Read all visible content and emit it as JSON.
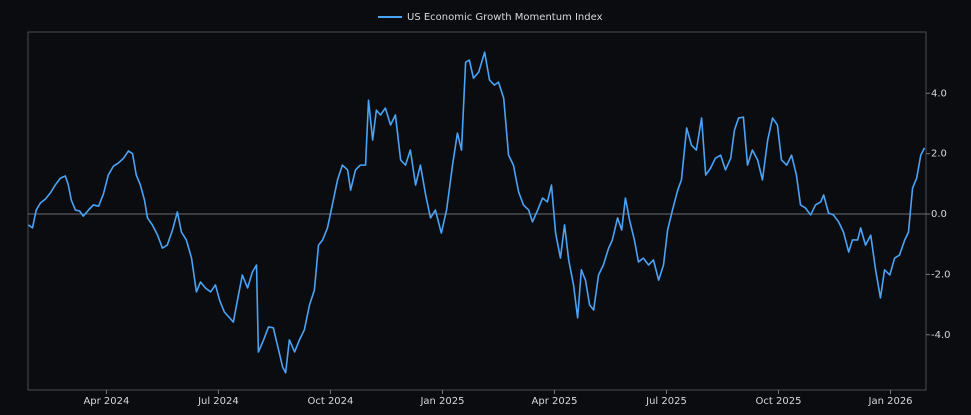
{
  "chart_data": {
    "type": "line",
    "x": [
      0.91,
      1.02,
      1.12,
      1.23,
      1.37,
      1.5,
      1.63,
      1.77,
      1.9,
      1.98,
      2.06,
      2.17,
      2.28,
      2.38,
      2.52,
      2.65,
      2.79,
      2.92,
      3.05,
      3.19,
      3.32,
      3.46,
      3.59,
      3.7,
      3.8,
      3.91,
      4.02,
      4.1,
      4.23,
      4.37,
      4.5,
      4.63,
      4.77,
      4.9,
      5.01,
      5.14,
      5.28,
      5.41,
      5.52,
      5.65,
      5.79,
      5.92,
      6.03,
      6.16,
      6.3,
      6.4,
      6.51,
      6.64,
      6.78,
      6.91,
      7.02,
      7.07,
      7.21,
      7.34,
      7.47,
      7.58,
      7.72,
      7.8,
      7.9,
      8.04,
      8.17,
      8.3,
      8.44,
      8.57,
      8.68,
      8.79,
      8.92,
      9.05,
      9.19,
      9.32,
      9.46,
      9.54,
      9.67,
      9.8,
      9.94,
      10.02,
      10.13,
      10.23,
      10.34,
      10.47,
      10.61,
      10.74,
      10.88,
      11.01,
      11.14,
      11.28,
      11.41,
      11.55,
      11.68,
      11.81,
      11.97,
      12.11,
      12.27,
      12.4,
      12.51,
      12.62,
      12.72,
      12.83,
      12.97,
      13.13,
      13.26,
      13.39,
      13.5,
      13.64,
      13.77,
      13.9,
      14.04,
      14.17,
      14.31,
      14.41,
      14.55,
      14.68,
      14.81,
      14.92,
      15.03,
      15.16,
      15.27,
      15.38,
      15.51,
      15.62,
      15.72,
      15.83,
      15.94,
      16.05,
      16.18,
      16.31,
      16.45,
      16.55,
      16.69,
      16.8,
      16.9,
      17.01,
      17.14,
      17.25,
      17.38,
      17.52,
      17.65,
      17.79,
      17.92,
      18.03,
      18.16,
      18.3,
      18.4,
      18.54,
      18.67,
      18.8,
      18.94,
      19.05,
      19.18,
      19.31,
      19.45,
      19.58,
      19.72,
      19.82,
      19.93,
      20.06,
      20.17,
      20.3,
      20.44,
      20.57,
      20.71,
      20.84,
      20.97,
      21.08,
      21.22,
      21.35,
      21.48,
      21.59,
      21.72,
      21.86,
      21.99,
      22.13,
      22.21,
      22.34,
      22.47,
      22.61,
      22.74,
      22.88,
      22.98,
      23.12,
      23.2,
      23.33,
      23.47,
      23.6,
      23.73,
      23.84,
      23.98,
      24.11,
      24.24,
      24.38,
      24.48,
      24.59,
      24.7,
      24.81,
      24.91
    ],
    "series": [
      {
        "name": "US Economic Growth Momentum Index",
        "color": "#4aa3f5",
        "values": [
          -0.36,
          -0.46,
          0.13,
          0.36,
          0.5,
          0.7,
          0.96,
          1.19,
          1.26,
          0.96,
          0.46,
          0.13,
          0.1,
          -0.07,
          0.13,
          0.3,
          0.26,
          0.66,
          1.29,
          1.59,
          1.69,
          1.85,
          2.09,
          2.0,
          1.29,
          0.96,
          0.46,
          -0.13,
          -0.36,
          -0.7,
          -1.13,
          -1.03,
          -0.53,
          0.07,
          -0.6,
          -0.86,
          -1.46,
          -2.58,
          -2.25,
          -2.45,
          -2.58,
          -2.35,
          -2.85,
          -3.25,
          -3.44,
          -3.58,
          -2.85,
          -2.02,
          -2.45,
          -1.92,
          -1.69,
          -4.57,
          -4.17,
          -3.74,
          -3.77,
          -4.34,
          -5.07,
          -5.26,
          -4.17,
          -4.57,
          -4.17,
          -3.84,
          -3.01,
          -2.52,
          -1.03,
          -0.86,
          -0.46,
          0.3,
          1.13,
          1.62,
          1.46,
          0.79,
          1.46,
          1.62,
          1.62,
          3.77,
          2.45,
          3.44,
          3.28,
          3.51,
          2.95,
          3.28,
          1.79,
          1.62,
          2.12,
          0.96,
          1.62,
          0.63,
          -0.13,
          0.13,
          -0.63,
          0.13,
          1.62,
          2.68,
          2.12,
          5.03,
          5.1,
          4.5,
          4.7,
          5.36,
          4.44,
          4.27,
          4.37,
          3.84,
          1.95,
          1.62,
          0.73,
          0.3,
          0.13,
          -0.26,
          0.13,
          0.53,
          0.4,
          0.96,
          -0.63,
          -1.46,
          -0.36,
          -1.52,
          -2.35,
          -3.44,
          -1.85,
          -2.19,
          -3.01,
          -3.18,
          -2.02,
          -1.69,
          -1.13,
          -0.86,
          -0.13,
          -0.53,
          0.53,
          -0.2,
          -0.86,
          -1.59,
          -1.46,
          -1.69,
          -1.52,
          -2.19,
          -1.69,
          -0.53,
          0.13,
          0.79,
          1.13,
          2.85,
          2.28,
          2.12,
          3.18,
          1.29,
          1.52,
          1.85,
          1.95,
          1.46,
          1.85,
          2.78,
          3.18,
          3.21,
          1.62,
          2.12,
          1.79,
          1.13,
          2.45,
          3.18,
          2.95,
          1.79,
          1.62,
          1.95,
          1.29,
          0.3,
          0.2,
          -0.03,
          0.3,
          0.4,
          0.63,
          0.03,
          -0.03,
          -0.26,
          -0.6,
          -1.26,
          -0.86,
          -0.86,
          -0.46,
          -1.03,
          -0.7,
          -1.85,
          -2.78,
          -1.85,
          -2.02,
          -1.46,
          -1.36,
          -0.86,
          -0.6,
          0.86,
          1.19,
          1.95,
          2.19
        ]
      }
    ],
    "xlim": [
      0.9,
      24.95
    ],
    "xticks": [
      {
        "value": 3,
        "label": "Apr 2024"
      },
      {
        "value": 6,
        "label": "Jul 2024"
      },
      {
        "value": 9,
        "label": "Oct 2024"
      },
      {
        "value": 12,
        "label": "Jan 2025"
      },
      {
        "value": 15,
        "label": "Apr 2025"
      },
      {
        "value": 18,
        "label": "Jul 2025"
      },
      {
        "value": 21,
        "label": "Oct 2025"
      },
      {
        "value": 24,
        "label": "Jan 2026"
      }
    ],
    "ylim": [
      -5.83,
      6.03
    ],
    "yticks": [
      {
        "value": -4,
        "label": "-4.0"
      },
      {
        "value": -2,
        "label": "-2.0"
      },
      {
        "value": 0,
        "label": "0.0"
      },
      {
        "value": 2,
        "label": "2.0"
      },
      {
        "value": 4,
        "label": "4.0"
      }
    ],
    "zero_line": true,
    "legend": "top"
  }
}
